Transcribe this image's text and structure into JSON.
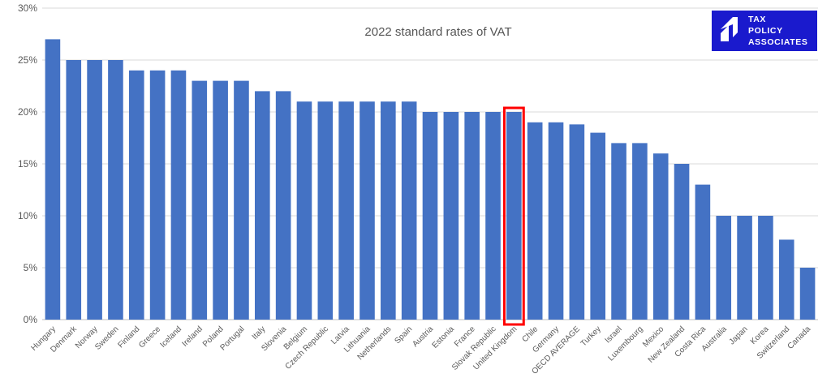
{
  "chart_data": {
    "type": "bar",
    "title": "2022 standard rates of VAT",
    "xlabel": "",
    "ylabel": "",
    "ylim": [
      0,
      30
    ],
    "yticks": [
      0,
      5,
      10,
      15,
      20,
      25,
      30
    ],
    "ytick_suffix": "%",
    "grid": true,
    "legend": "none",
    "bar_color": "#4472C4",
    "highlight_color": "#FF0000",
    "highlight_category": "United Kingdom",
    "categories": [
      "Hungary",
      "Denmark",
      "Norway",
      "Sweden",
      "Finland",
      "Greece",
      "Iceland",
      "Ireland",
      "Poland",
      "Portugal",
      "Italy",
      "Slovenia",
      "Belgium",
      "Czech Republic",
      "Latvia",
      "Lithuania",
      "Netherlands",
      "Spain",
      "Austria",
      "Estonia",
      "France",
      "Slovak Republic",
      "United Kingdom",
      "Chile",
      "Germany",
      "OECD AVERAGE",
      "Turkey",
      "Israel",
      "Luxembourg",
      "Mexico",
      "New Zealand",
      "Costa Rica",
      "Australia",
      "Japan",
      "Korea",
      "Switzerland",
      "Canada"
    ],
    "values": [
      27,
      25,
      25,
      25,
      24,
      24,
      24,
      23,
      23,
      23,
      22,
      22,
      21,
      21,
      21,
      21,
      21,
      21,
      20,
      20,
      20,
      20,
      20,
      19,
      19,
      18.8,
      18,
      17,
      17,
      16,
      15,
      13,
      10,
      10,
      10,
      7.7,
      5
    ]
  },
  "logo": {
    "lines": [
      "TAX",
      "POLICY",
      "ASSOCIATES"
    ],
    "bg_color": "#1A1ACD"
  }
}
